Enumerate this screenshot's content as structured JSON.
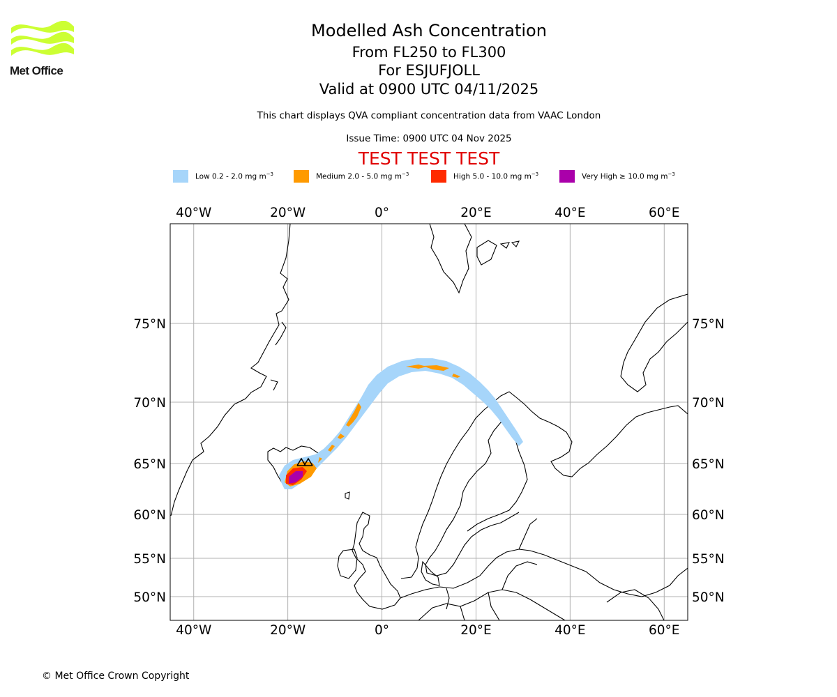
{
  "header": {
    "title": "Modelled Ash Concentration",
    "level_range": "From FL250 to FL300",
    "volcano": "For ESJUFJOLL",
    "valid_time": "Valid at 0900 UTC 04/11/2025",
    "subtitle": "This chart displays QVA compliant concentration data from VAAC London",
    "issue_time": "Issue Time: 0900 UTC 04 Nov 2025",
    "test_banner": "TEST TEST TEST"
  },
  "logo": {
    "text": "Met Office",
    "color": "#ccff33",
    "icon": "met-office-wave-logo"
  },
  "legend": [
    {
      "label": "Low 0.2 - 2.0 mg m",
      "unit_sup": "−3",
      "color": "#a6d5fa"
    },
    {
      "label": "Medium 2.0 - 5.0 mg m",
      "unit_sup": "−3",
      "color": "#ff9a00"
    },
    {
      "label": "High 5.0 - 10.0 mg m",
      "unit_sup": "−3",
      "color": "#ff2a00"
    },
    {
      "label": "Very High  ≥  10.0 mg m",
      "unit_sup": "−3",
      "color": "#aa00aa"
    }
  ],
  "map": {
    "lon_ticks": [
      {
        "value": -40,
        "label": "40°W"
      },
      {
        "value": -20,
        "label": "20°W"
      },
      {
        "value": 0,
        "label": "0°"
      },
      {
        "value": 20,
        "label": "20°E"
      },
      {
        "value": 40,
        "label": "40°E"
      },
      {
        "value": 60,
        "label": "60°E"
      }
    ],
    "lat_ticks": [
      {
        "value": 75,
        "label": "75°N"
      },
      {
        "value": 70,
        "label": "70°N"
      },
      {
        "value": 65,
        "label": "65°N"
      },
      {
        "value": 60,
        "label": "60°N"
      },
      {
        "value": 55,
        "label": "55°N"
      },
      {
        "value": 50,
        "label": "50°N"
      }
    ],
    "lon_range": [
      -45,
      65
    ],
    "grid": true,
    "volcano_marker_icon": "volcano-triangle-icon"
  },
  "footer": {
    "copyright": "© Met Office Crown Copyright"
  }
}
